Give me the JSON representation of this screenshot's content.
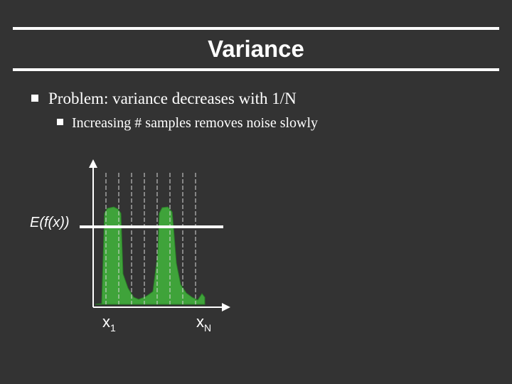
{
  "slide": {
    "title": "Variance",
    "bullets": [
      {
        "text": "Problem: variance decreases with 1/N"
      }
    ],
    "sub_bullets": [
      {
        "text": "Increasing # samples removes noise slowly"
      }
    ]
  },
  "figure": {
    "expectation_label": "E(f(x))",
    "x1_label": "x",
    "x1_subscript": "1",
    "xn_label": "x",
    "xn_subscript": "N",
    "sample_count": 8,
    "colors": {
      "curve_fill": "#3fa33a",
      "curve_stroke": "#2a7d27",
      "axes": "#ffffff",
      "sample_lines": "#d8d8d8",
      "expectation_line": "#ffffff"
    },
    "icons": {
      "bullet": "square-bullet-icon"
    }
  }
}
